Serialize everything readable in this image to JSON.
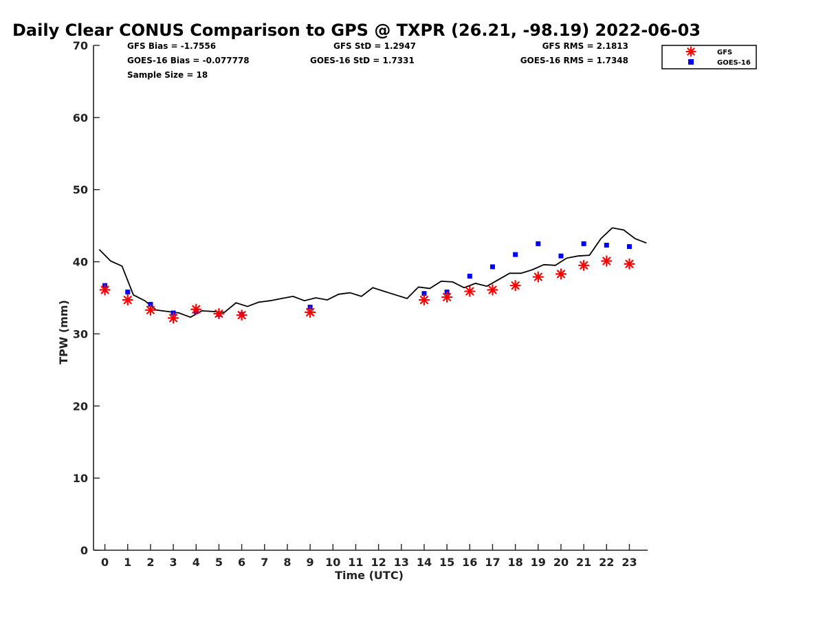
{
  "chart_data": {
    "type": "scatter",
    "title": "Daily Clear CONUS Comparison to GPS @ TXPR (26.21, -98.19) 2022-06-03",
    "xlabel": "Time (UTC)",
    "ylabel": "TPW (mm)",
    "xlim": [
      -0.5,
      23.8
    ],
    "ylim": [
      0,
      70
    ],
    "xticks": [
      0,
      1,
      2,
      3,
      4,
      5,
      6,
      7,
      8,
      9,
      10,
      11,
      12,
      13,
      14,
      15,
      16,
      17,
      18,
      19,
      20,
      21,
      22,
      23
    ],
    "yticks": [
      0,
      10,
      20,
      30,
      40,
      50,
      60,
      70
    ],
    "grid": false,
    "legend_position": "top-right",
    "stats": {
      "gfs_bias": "GFS Bias = -1.7556",
      "goes_bias": "GOES-16 Bias = -0.077778",
      "sample_size": "Sample Size = 18",
      "gfs_std": "GFS StD = 1.2947",
      "goes_std": "GOES-16 StD = 1.7331",
      "gfs_rms": "GFS RMS = 2.1813",
      "goes_rms": "GOES-16 RMS = 1.7348"
    },
    "series": [
      {
        "name": "GFS",
        "marker": "asterisk",
        "color": "#ff0000",
        "x": [
          0,
          1,
          2,
          3,
          4,
          5,
          6,
          9,
          14,
          15,
          16,
          17,
          18,
          19,
          20,
          21,
          22,
          23
        ],
        "y": [
          36.1,
          34.7,
          33.3,
          32.2,
          33.4,
          32.8,
          32.6,
          33.0,
          34.7,
          35.1,
          35.9,
          36.1,
          36.7,
          37.9,
          38.3,
          39.5,
          40.1,
          39.7
        ]
      },
      {
        "name": "GOES-16",
        "marker": "square",
        "color": "#0000ff",
        "x": [
          0,
          1,
          2,
          3,
          4,
          5,
          6,
          9,
          14,
          15,
          16,
          17,
          18,
          19,
          20,
          21,
          22,
          23
        ],
        "y": [
          36.7,
          35.8,
          34.1,
          32.9,
          33.1,
          32.7,
          32.7,
          33.7,
          35.6,
          35.8,
          38.0,
          39.3,
          41.0,
          42.5,
          40.8,
          42.5,
          42.3,
          42.1
        ]
      },
      {
        "name": "GPS",
        "marker": "line",
        "color": "#000000",
        "x": [
          -0.25,
          0.25,
          0.75,
          1.25,
          1.75,
          2.25,
          2.75,
          3.25,
          3.75,
          4.25,
          4.75,
          5.25,
          5.75,
          6.25,
          6.75,
          7.25,
          7.75,
          8.25,
          8.75,
          9.25,
          9.75,
          10.25,
          10.75,
          11.25,
          11.75,
          12.25,
          12.75,
          13.25,
          13.75,
          14.25,
          14.75,
          15.25,
          15.75,
          16.25,
          16.75,
          17.25,
          17.75,
          18.25,
          18.75,
          19.25,
          19.75,
          20.25,
          20.75,
          21.25,
          21.75,
          22.25,
          22.75,
          23.25,
          23.75
        ],
        "y": [
          41.7,
          40.1,
          39.4,
          35.4,
          34.6,
          33.3,
          33.1,
          32.9,
          32.3,
          33.2,
          33.1,
          33.0,
          34.3,
          33.8,
          34.4,
          34.6,
          34.9,
          35.2,
          34.6,
          35.0,
          34.7,
          35.5,
          35.7,
          35.2,
          36.4,
          35.9,
          35.4,
          34.9,
          36.5,
          36.3,
          37.3,
          37.2,
          36.4,
          37.0,
          36.6,
          37.5,
          38.4,
          38.4,
          38.9,
          39.6,
          39.5,
          40.5,
          40.8,
          40.9,
          43.2,
          44.7,
          44.4,
          43.2,
          42.6
        ]
      }
    ]
  }
}
